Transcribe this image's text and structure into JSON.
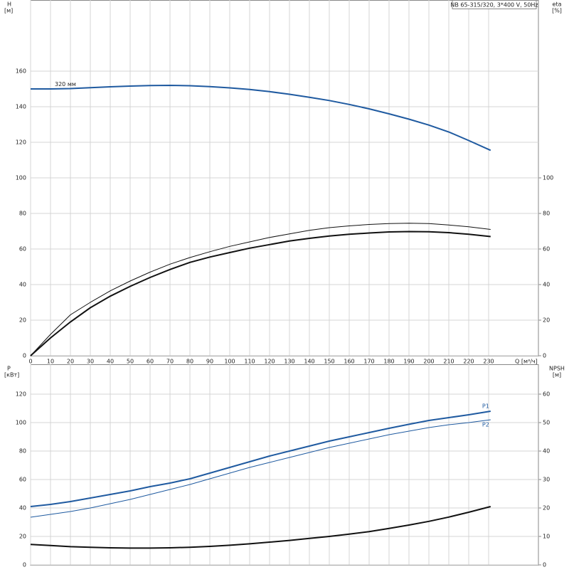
{
  "chart_data": [
    {
      "type": "line",
      "title": "NB 65-315/320, 3*400 V, 50Hz",
      "ylabel": "H",
      "yunit": "[м]",
      "y2label": "eta",
      "y2unit": "[%]",
      "xlabel": "Q [м³/ч]",
      "annotation": "320 мм",
      "x": [
        0,
        10,
        20,
        30,
        40,
        50,
        60,
        70,
        80,
        90,
        100,
        110,
        120,
        130,
        140,
        150,
        160,
        170,
        180,
        190,
        200,
        210,
        220,
        231
      ],
      "xlim": [
        0,
        255
      ],
      "xticks": [
        0,
        10,
        20,
        30,
        40,
        50,
        60,
        70,
        80,
        90,
        100,
        110,
        120,
        130,
        140,
        150,
        160,
        170,
        180,
        190,
        200,
        210,
        220,
        230
      ],
      "ylim": [
        0,
        200
      ],
      "yticks": [
        0,
        20,
        40,
        60,
        80,
        100,
        120,
        140,
        160
      ],
      "y2lim": [
        0,
        200
      ],
      "y2ticks": [
        0,
        20,
        40,
        60,
        80,
        100
      ],
      "grid": true,
      "series": [
        {
          "color": "#1f5aa0",
          "line_width": 2,
          "values": [
            150,
            150,
            150.2,
            150.7,
            151.2,
            151.6,
            151.9,
            152,
            151.8,
            151.3,
            150.6,
            149.7,
            148.5,
            147,
            145.3,
            143.5,
            141.3,
            138.8,
            136,
            133,
            129.7,
            125.8,
            121,
            115.5
          ]
        },
        {
          "color": "#111111",
          "line_width": 1,
          "axis": "y2",
          "values": [
            0,
            12,
            23,
            30,
            36.5,
            42,
            47,
            51.5,
            55.2,
            58.5,
            61.5,
            64,
            66.5,
            68.5,
            70.5,
            72,
            73,
            73.8,
            74.3,
            74.5,
            74.3,
            73.5,
            72.5,
            71
          ]
        },
        {
          "color": "#111111",
          "line_width": 2,
          "axis": "y2",
          "values": [
            0,
            10,
            19,
            27,
            33.5,
            39,
            44,
            48.5,
            52.5,
            55.5,
            58,
            60.5,
            62.5,
            64.5,
            66,
            67.3,
            68.3,
            69,
            69.6,
            69.8,
            69.7,
            69.2,
            68.3,
            67
          ]
        }
      ]
    },
    {
      "type": "line",
      "ylabel": "P",
      "yunit": "[кВт]",
      "y2label": "NPSH",
      "y2unit": "[м]",
      "x": [
        0,
        10,
        20,
        30,
        40,
        50,
        60,
        70,
        80,
        90,
        100,
        110,
        120,
        130,
        140,
        150,
        160,
        170,
        180,
        190,
        200,
        210,
        220,
        231
      ],
      "xlim": [
        0,
        255
      ],
      "xticks": [
        0,
        10,
        20,
        30,
        40,
        50,
        60,
        70,
        80,
        90,
        100,
        110,
        120,
        130,
        140,
        150,
        160,
        170,
        180,
        190,
        200,
        210,
        220,
        230
      ],
      "ylim": [
        0,
        141
      ],
      "yticks": [
        0,
        20,
        40,
        60,
        80,
        100,
        120
      ],
      "y2lim": [
        0,
        70.5
      ],
      "y2ticks": [
        0,
        10,
        20,
        30,
        40,
        50,
        60
      ],
      "grid": true,
      "series": [
        {
          "name": "P1",
          "color": "#1f5aa0",
          "line_width": 2,
          "values": [
            41,
            42.5,
            44.5,
            47,
            49.5,
            52,
            55,
            57.5,
            60.5,
            64.5,
            68.5,
            72.5,
            76.5,
            80,
            83.5,
            87,
            90,
            93,
            96,
            98.8,
            101.5,
            103.5,
            105.5,
            108
          ]
        },
        {
          "name": "P2",
          "color": "#1f5aa0",
          "line_width": 1,
          "values": [
            33.5,
            35.5,
            37.5,
            40,
            43,
            46,
            49.5,
            53,
            56.5,
            60.5,
            64.5,
            68.5,
            72,
            75.5,
            79,
            82.5,
            85.5,
            88.5,
            91.5,
            94,
            96.5,
            98.5,
            100,
            102
          ]
        },
        {
          "color": "#111111",
          "line_width": 2,
          "axis": "y2",
          "values": [
            7.2,
            6.8,
            6.4,
            6.2,
            6,
            5.9,
            5.9,
            6,
            6.2,
            6.5,
            6.9,
            7.4,
            8,
            8.6,
            9.3,
            10,
            10.8,
            11.7,
            12.8,
            14,
            15.3,
            16.8,
            18.5,
            20.5
          ]
        }
      ]
    }
  ]
}
